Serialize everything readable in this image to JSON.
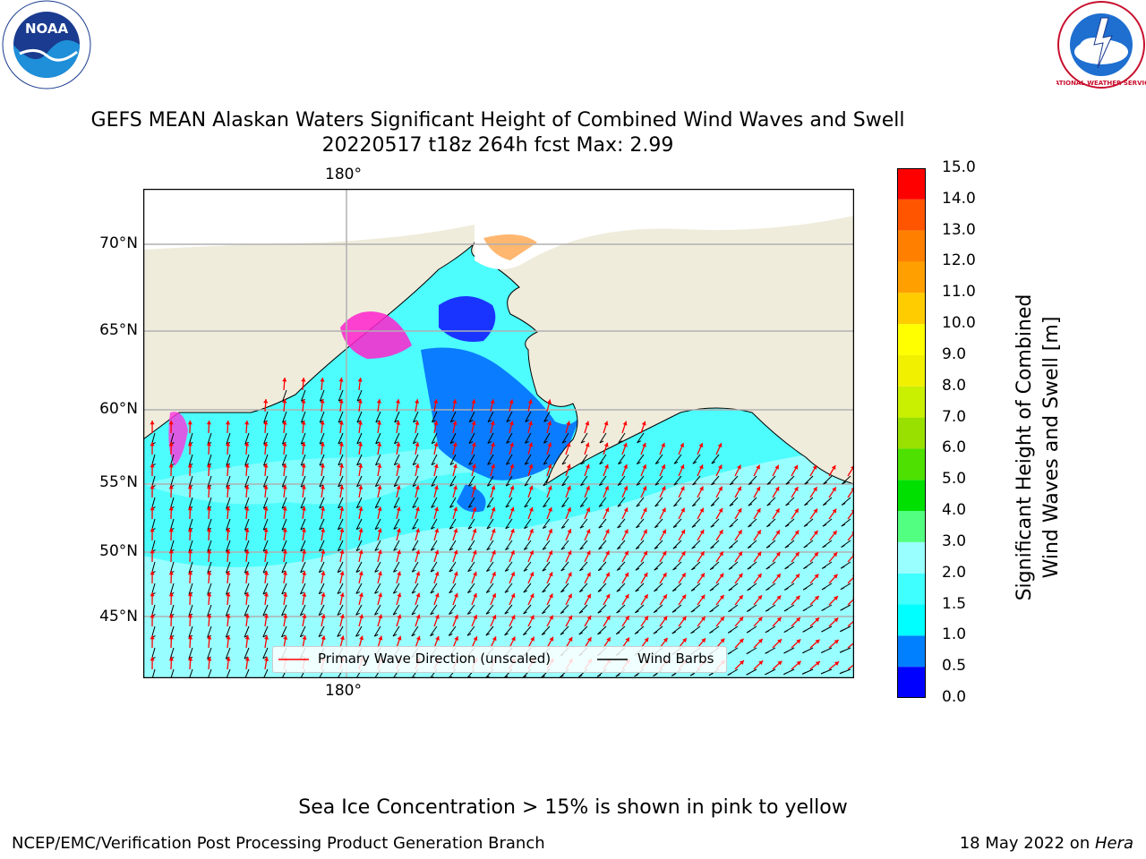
{
  "header": {
    "title_line1": "GEFS MEAN Alaskan Waters Significant Height of Combined Wind Waves and Swell",
    "title_line2": "20220517 t18z 264h fcst   Max: 2.99"
  },
  "logos": {
    "left": {
      "name": "NOAA",
      "ring_text": "NATIONAL OCEANIC AND ATMOSPHERIC ADMINISTRATION · U.S. DEPARTMENT OF COMMERCE"
    },
    "right": {
      "name": "NATIONAL WEATHER SERVICE"
    }
  },
  "map": {
    "lon_label_top": "180°",
    "lon_label_bottom": "180°",
    "lat_labels": [
      "70°N",
      "65°N",
      "60°N",
      "55°N",
      "50°N",
      "45°N"
    ],
    "legend": {
      "wave_label": "Primary Wave Direction (unscaled)",
      "wind_label": "Wind Barbs"
    },
    "colors": {
      "land": "#efecdc",
      "ocean_shallow": "#00ffff",
      "ocean_mid": "#4dfdfd",
      "ocean_high": "#99feff",
      "ocean_low": "#0a7cff",
      "grid": "#b0b0b0",
      "wave_arrow": "#ff0000",
      "wind_barb": "#000000"
    }
  },
  "colorbar": {
    "title_line1": "Significant Height of Combined",
    "title_line2": "Wind Waves and Swell [m]",
    "ticks": [
      "0.0",
      "0.5",
      "1.0",
      "1.5",
      "2.0",
      "3.0",
      "4.0",
      "5.0",
      "6.0",
      "7.0",
      "8.0",
      "9.0",
      "10.0",
      "11.0",
      "12.0",
      "13.0",
      "14.0",
      "15.0"
    ],
    "colors": [
      "#0000ff",
      "#0080ff",
      "#00ffff",
      "#40ffff",
      "#99ffff",
      "#53ff80",
      "#00e000",
      "#4de000",
      "#99e000",
      "#c8f000",
      "#f0f000",
      "#ffff00",
      "#ffcc00",
      "#ffa000",
      "#ff8000",
      "#ff5500",
      "#ff0000"
    ]
  },
  "footer": {
    "note": "Sea Ice Concentration > 15% is shown in pink to yellow",
    "left": "NCEP/EMC/Verification Post Processing Product Generation Branch",
    "right_prefix": "18 May 2022 on ",
    "right_italic": "Hera"
  }
}
